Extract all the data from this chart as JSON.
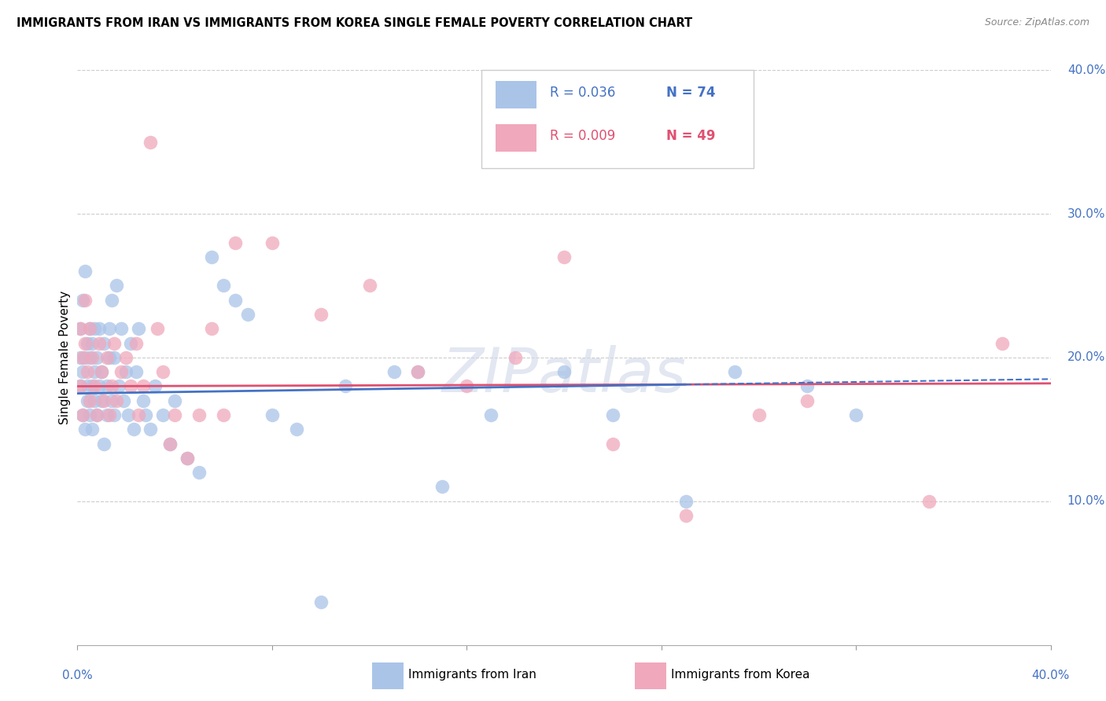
{
  "title": "IMMIGRANTS FROM IRAN VS IMMIGRANTS FROM KOREA SINGLE FEMALE POVERTY CORRELATION CHART",
  "source": "Source: ZipAtlas.com",
  "ylabel": "Single Female Poverty",
  "right_yticks": [
    "40.0%",
    "30.0%",
    "20.0%",
    "10.0%"
  ],
  "right_ytick_vals": [
    0.4,
    0.3,
    0.2,
    0.1
  ],
  "xmin": 0.0,
  "xmax": 0.4,
  "ymin": 0.0,
  "ymax": 0.4,
  "iran_R_label": "R = 0.036",
  "iran_N_label": "N = 74",
  "korea_R_label": "R = 0.009",
  "korea_N_label": "N = 49",
  "iran_color": "#aac4e8",
  "korea_color": "#f0a8bc",
  "iran_line_color": "#4472c4",
  "korea_line_color": "#e05070",
  "watermark": "ZIPatlas",
  "iran_scatter_x": [
    0.001,
    0.001,
    0.001,
    0.002,
    0.002,
    0.002,
    0.003,
    0.003,
    0.003,
    0.004,
    0.004,
    0.004,
    0.005,
    0.005,
    0.005,
    0.006,
    0.006,
    0.006,
    0.007,
    0.007,
    0.007,
    0.008,
    0.008,
    0.009,
    0.009,
    0.01,
    0.01,
    0.011,
    0.011,
    0.012,
    0.012,
    0.013,
    0.013,
    0.014,
    0.014,
    0.015,
    0.015,
    0.016,
    0.017,
    0.018,
    0.019,
    0.02,
    0.021,
    0.022,
    0.023,
    0.024,
    0.025,
    0.027,
    0.028,
    0.03,
    0.032,
    0.035,
    0.038,
    0.04,
    0.045,
    0.05,
    0.055,
    0.06,
    0.065,
    0.07,
    0.08,
    0.09,
    0.1,
    0.11,
    0.13,
    0.14,
    0.15,
    0.17,
    0.2,
    0.22,
    0.25,
    0.27,
    0.3,
    0.32
  ],
  "iran_scatter_y": [
    0.18,
    0.2,
    0.22,
    0.16,
    0.19,
    0.24,
    0.15,
    0.2,
    0.26,
    0.17,
    0.21,
    0.18,
    0.16,
    0.2,
    0.22,
    0.15,
    0.18,
    0.21,
    0.17,
    0.19,
    0.22,
    0.16,
    0.2,
    0.18,
    0.22,
    0.17,
    0.19,
    0.14,
    0.21,
    0.18,
    0.16,
    0.2,
    0.22,
    0.17,
    0.24,
    0.16,
    0.2,
    0.25,
    0.18,
    0.22,
    0.17,
    0.19,
    0.16,
    0.21,
    0.15,
    0.19,
    0.22,
    0.17,
    0.16,
    0.15,
    0.18,
    0.16,
    0.14,
    0.17,
    0.13,
    0.12,
    0.27,
    0.25,
    0.24,
    0.23,
    0.16,
    0.15,
    0.03,
    0.18,
    0.19,
    0.19,
    0.11,
    0.16,
    0.19,
    0.16,
    0.1,
    0.19,
    0.18,
    0.16
  ],
  "korea_scatter_x": [
    0.001,
    0.001,
    0.002,
    0.002,
    0.003,
    0.003,
    0.004,
    0.005,
    0.005,
    0.006,
    0.007,
    0.008,
    0.009,
    0.01,
    0.011,
    0.012,
    0.013,
    0.014,
    0.015,
    0.016,
    0.018,
    0.02,
    0.022,
    0.024,
    0.025,
    0.027,
    0.03,
    0.033,
    0.035,
    0.038,
    0.04,
    0.045,
    0.05,
    0.055,
    0.06,
    0.065,
    0.08,
    0.1,
    0.12,
    0.14,
    0.16,
    0.18,
    0.2,
    0.22,
    0.25,
    0.28,
    0.3,
    0.35,
    0.38
  ],
  "korea_scatter_y": [
    0.18,
    0.22,
    0.16,
    0.2,
    0.21,
    0.24,
    0.19,
    0.17,
    0.22,
    0.2,
    0.18,
    0.16,
    0.21,
    0.19,
    0.17,
    0.2,
    0.16,
    0.18,
    0.21,
    0.17,
    0.19,
    0.2,
    0.18,
    0.21,
    0.16,
    0.18,
    0.35,
    0.22,
    0.19,
    0.14,
    0.16,
    0.13,
    0.16,
    0.22,
    0.16,
    0.28,
    0.28,
    0.23,
    0.25,
    0.19,
    0.18,
    0.2,
    0.27,
    0.14,
    0.09,
    0.16,
    0.17,
    0.1,
    0.21
  ]
}
